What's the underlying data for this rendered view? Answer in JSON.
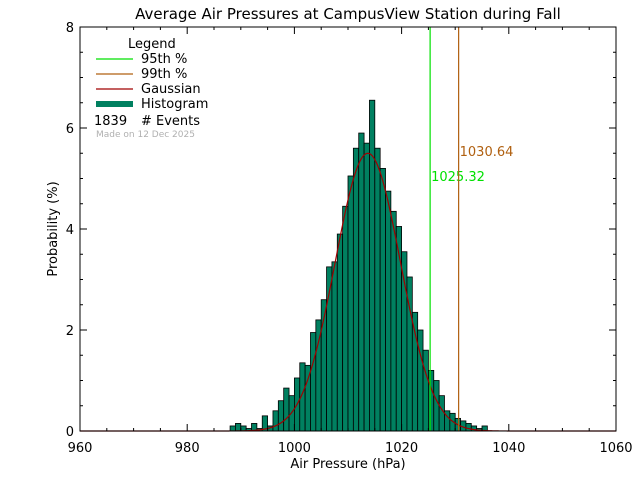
{
  "chart_data": {
    "type": "bar",
    "title": "Average Air Pressures at CampusView Station during Fall",
    "xlabel": "Air Pressure (hPa)",
    "ylabel": "Probability (%)",
    "xlim": [
      960,
      1060
    ],
    "ylim": [
      0,
      8
    ],
    "x_ticks": [
      "960",
      "980",
      "1000",
      "1020",
      "1040",
      "1060"
    ],
    "y_ticks": [
      "0",
      "2",
      "4",
      "6",
      "8"
    ],
    "grid": false,
    "legend": {
      "title": "Legend",
      "placement": "top-left",
      "items": [
        {
          "label": "95th %",
          "color": "#00e000",
          "kind": "line"
        },
        {
          "label": "99th %",
          "color": "#b06010",
          "kind": "line"
        },
        {
          "label": "Gaussian",
          "color": "#a00000",
          "kind": "line"
        },
        {
          "label": "Histogram",
          "color": "#008060",
          "kind": "thick-line"
        }
      ],
      "events_count": "1839",
      "events_label": "# Events",
      "made_on": "Made on 12 Dec 2025"
    },
    "histogram": {
      "name": "Histogram",
      "color": "#008060",
      "bin_width": 1,
      "bins": [
        [
          988,
          0.1
        ],
        [
          989,
          0.15
        ],
        [
          990,
          0.1
        ],
        [
          991,
          0.05
        ],
        [
          992,
          0.15
        ],
        [
          993,
          0.05
        ],
        [
          994,
          0.3
        ],
        [
          995,
          0.1
        ],
        [
          996,
          0.4
        ],
        [
          997,
          0.6
        ],
        [
          998,
          0.85
        ],
        [
          999,
          0.7
        ],
        [
          1000,
          1.05
        ],
        [
          1001,
          1.35
        ],
        [
          1002,
          1.3
        ],
        [
          1003,
          1.95
        ],
        [
          1004,
          2.2
        ],
        [
          1005,
          2.6
        ],
        [
          1006,
          3.25
        ],
        [
          1007,
          3.35
        ],
        [
          1008,
          3.9
        ],
        [
          1009,
          4.45
        ],
        [
          1010,
          5.05
        ],
        [
          1011,
          5.6
        ],
        [
          1012,
          5.9
        ],
        [
          1013,
          5.7
        ],
        [
          1014,
          6.55
        ],
        [
          1015,
          5.6
        ],
        [
          1016,
          5.2
        ],
        [
          1017,
          4.75
        ],
        [
          1018,
          4.35
        ],
        [
          1019,
          4.05
        ],
        [
          1020,
          3.55
        ],
        [
          1021,
          3.05
        ],
        [
          1022,
          2.35
        ],
        [
          1023,
          2.0
        ],
        [
          1024,
          1.6
        ],
        [
          1025,
          1.2
        ],
        [
          1026,
          1.0
        ],
        [
          1027,
          0.7
        ],
        [
          1028,
          0.4
        ],
        [
          1029,
          0.35
        ],
        [
          1030,
          0.25
        ],
        [
          1031,
          0.2
        ],
        [
          1032,
          0.15
        ],
        [
          1033,
          0.1
        ],
        [
          1034,
          0.05
        ],
        [
          1035,
          0.1
        ]
      ]
    },
    "gaussian": {
      "name": "Gaussian",
      "color": "#a00000",
      "mean": 1013.7,
      "sigma": 6.1,
      "peak": 5.5
    },
    "percentiles": [
      {
        "name": "95th %",
        "value": 1025.32,
        "label": "1025.32",
        "color": "#00e000",
        "label_y": 4.95
      },
      {
        "name": "99th %",
        "value": 1030.64,
        "label": "1030.64",
        "color": "#b06010",
        "label_y": 5.45
      }
    ]
  }
}
